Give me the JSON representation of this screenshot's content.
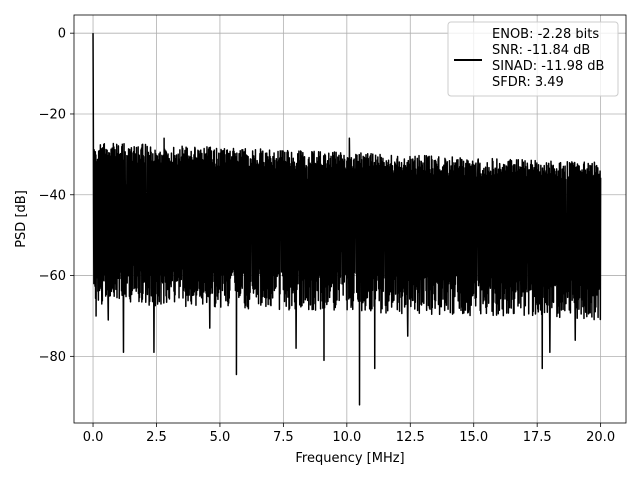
{
  "chart_data": {
    "type": "line",
    "title": "",
    "xlabel": "Frequency [MHz]",
    "ylabel": "PSD [dB]",
    "xlim": [
      -0.75,
      21.0
    ],
    "ylim": [
      -96.5,
      4.5
    ],
    "x_ticks": [
      0.0,
      2.5,
      5.0,
      7.5,
      10.0,
      12.5,
      15.0,
      17.5,
      20.0
    ],
    "x_tick_labels": [
      "0.0",
      "2.5",
      "5.0",
      "7.5",
      "10.0",
      "12.5",
      "15.0",
      "17.5",
      "20.0"
    ],
    "y_ticks": [
      0,
      -20,
      -40,
      -60,
      -80
    ],
    "y_tick_labels": [
      "0",
      "−20",
      "−40",
      "−60",
      "−80"
    ],
    "grid": true,
    "legend_position": "top-right",
    "series": [
      {
        "name": "ENOB: -2.28 bits\nSNR: -11.84 dB\nSINAD: -11.98 dB\nSFDR: 3.49",
        "color": "#000000",
        "x_range": [
          0.0,
          20.0
        ],
        "dc_peak": 0.0,
        "noise_ceiling_start": -27,
        "noise_ceiling_end": -32,
        "noise_floor_start": -62,
        "noise_floor_end": -66,
        "notable_points": [
          {
            "x": 0.0,
            "y": 0.0
          },
          {
            "x": 0.12,
            "y": -70
          },
          {
            "x": 0.6,
            "y": -71
          },
          {
            "x": 1.2,
            "y": -79
          },
          {
            "x": 2.4,
            "y": -79
          },
          {
            "x": 2.8,
            "y": -26
          },
          {
            "x": 4.6,
            "y": -73
          },
          {
            "x": 5.65,
            "y": -84.5
          },
          {
            "x": 8.0,
            "y": -78
          },
          {
            "x": 9.1,
            "y": -81
          },
          {
            "x": 10.1,
            "y": -26
          },
          {
            "x": 10.5,
            "y": -92
          },
          {
            "x": 11.1,
            "y": -83
          },
          {
            "x": 12.4,
            "y": -75
          },
          {
            "x": 17.7,
            "y": -83
          },
          {
            "x": 18.0,
            "y": -79
          },
          {
            "x": 19.0,
            "y": -76
          }
        ]
      }
    ]
  }
}
